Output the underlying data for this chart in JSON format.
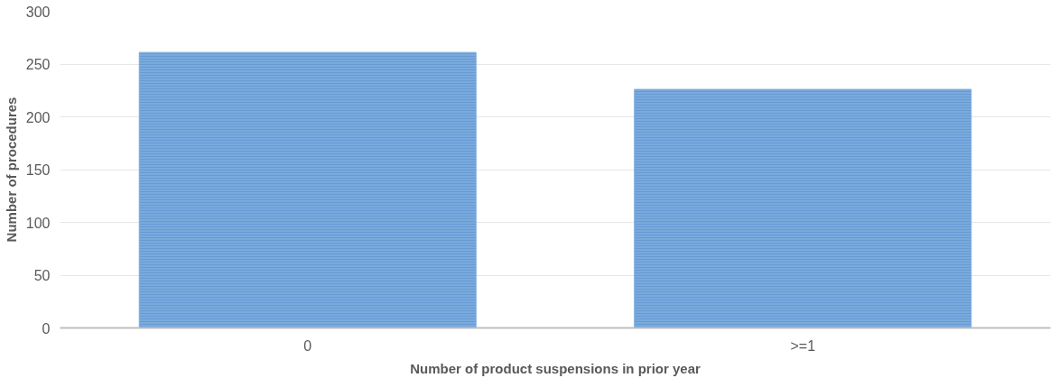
{
  "chart_data": {
    "type": "bar",
    "xlabel": "Number of product suspensions in prior year",
    "ylabel": "Number of procedures",
    "categories": [
      "0",
      ">=1"
    ],
    "series": [
      {
        "color": "#7aaadd",
        "values": [
          261,
          226
        ]
      }
    ],
    "ylim": [
      0,
      300
    ],
    "yticks": [
      0,
      50,
      100,
      150,
      200,
      250,
      300
    ],
    "grid": "y"
  }
}
